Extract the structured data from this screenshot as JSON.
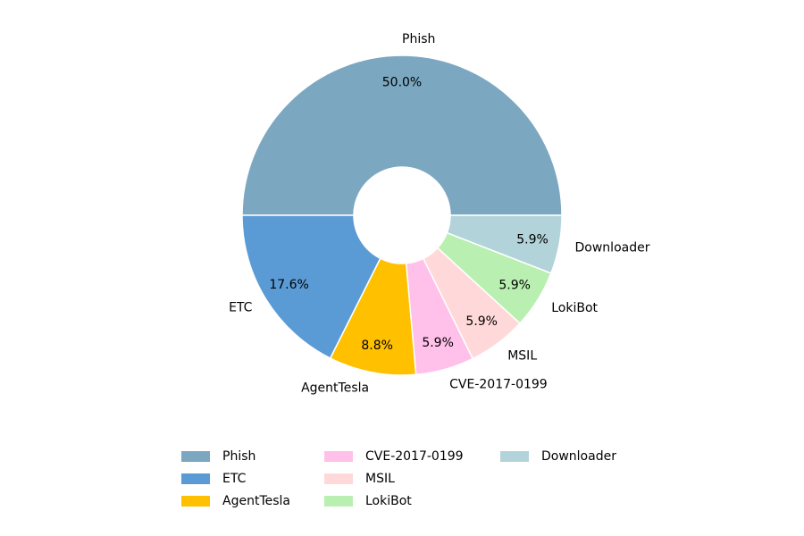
{
  "chart_data": {
    "type": "donut",
    "categories": [
      "Phish",
      "ETC",
      "AgentTesla",
      "CVE-2017-0199",
      "MSIL",
      "LokiBot",
      "Downloader"
    ],
    "values": [
      50.0,
      17.6,
      8.8,
      5.9,
      5.9,
      5.9,
      5.9
    ],
    "value_labels": [
      "50.0%",
      "17.6%",
      "8.8%",
      "5.9%",
      "5.9%",
      "5.9%",
      "5.9%"
    ],
    "colors": [
      "#7ba7c0",
      "#5b9bd5",
      "#ffc000",
      "#ffc0ea",
      "#ffd9d9",
      "#b9f0b1",
      "#b2d3d9"
    ],
    "legend": "bottom"
  }
}
